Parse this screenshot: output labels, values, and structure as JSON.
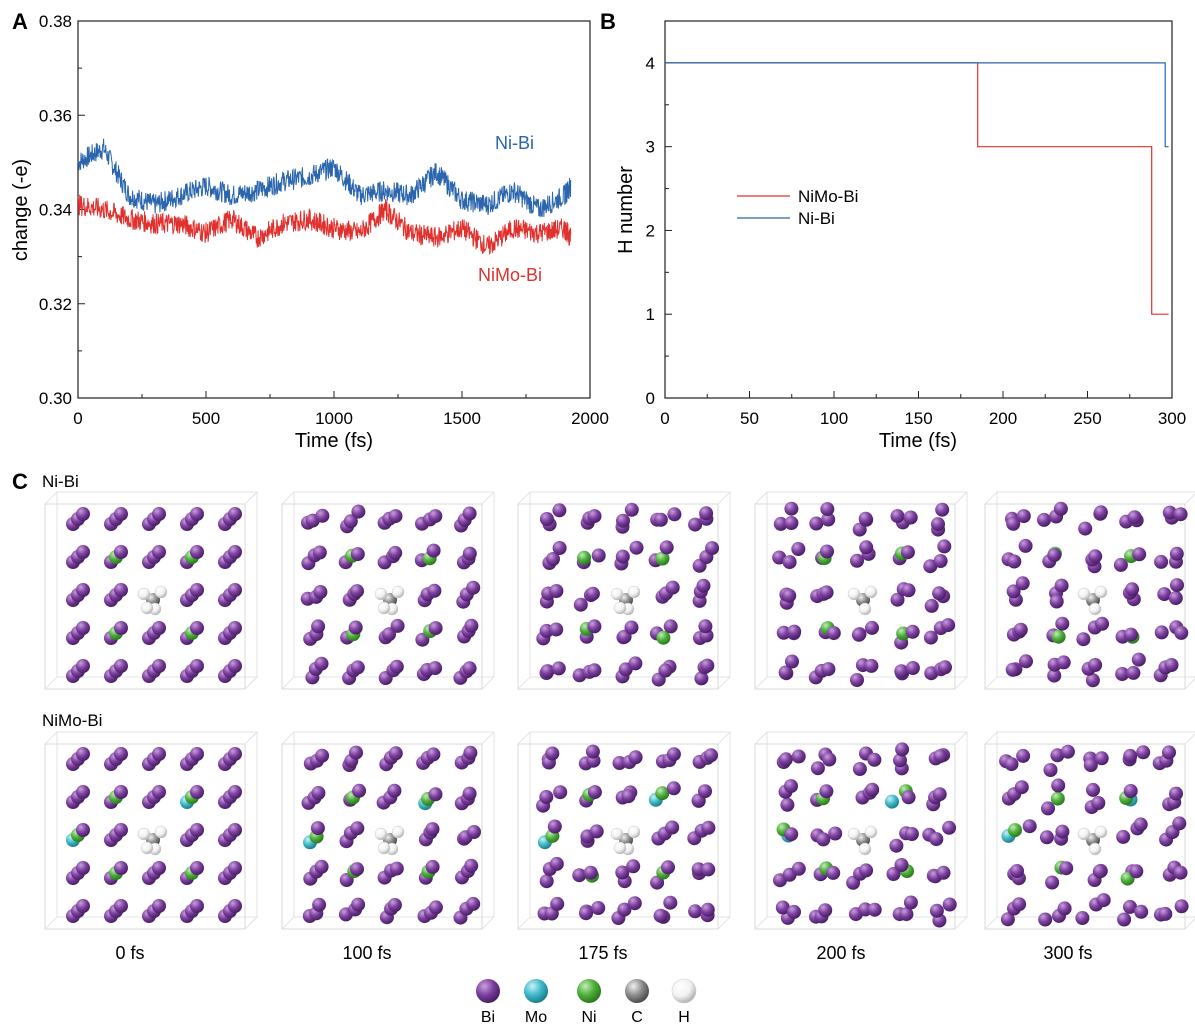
{
  "panels": {
    "a_letter": "A",
    "b_letter": "B",
    "c_letter": "C"
  },
  "chart_data": [
    {
      "type": "line",
      "panel": "A",
      "xlabel": "Time (fs)",
      "ylabel": "change (-e)",
      "xlim": [
        0,
        2000
      ],
      "ylim": [
        0.3,
        0.38
      ],
      "xticks": [
        "0",
        "500",
        "1000",
        "1500",
        "2000"
      ],
      "yticks": [
        "0.30",
        "0.32",
        "0.34",
        "0.36",
        "0.38"
      ],
      "grid": false,
      "series": [
        {
          "name": "Ni-Bi",
          "color": "#2a65ad",
          "x": [
            0,
            100,
            200,
            300,
            400,
            500,
            600,
            700,
            800,
            900,
            1000,
            1100,
            1200,
            1300,
            1400,
            1500,
            1600,
            1700,
            1800,
            1900,
            1925
          ],
          "y": [
            0.35,
            0.353,
            0.343,
            0.341,
            0.343,
            0.345,
            0.343,
            0.344,
            0.346,
            0.347,
            0.349,
            0.343,
            0.344,
            0.343,
            0.348,
            0.342,
            0.341,
            0.344,
            0.34,
            0.343,
            0.345
          ]
        },
        {
          "name": "NiMo-Bi",
          "color": "#e0312e",
          "x": [
            0,
            100,
            200,
            300,
            400,
            500,
            600,
            700,
            800,
            900,
            1000,
            1100,
            1200,
            1300,
            1400,
            1500,
            1600,
            1700,
            1800,
            1900,
            1925
          ],
          "y": [
            0.341,
            0.34,
            0.338,
            0.337,
            0.337,
            0.335,
            0.338,
            0.334,
            0.337,
            0.338,
            0.336,
            0.335,
            0.34,
            0.335,
            0.334,
            0.336,
            0.332,
            0.336,
            0.335,
            0.336,
            0.334
          ]
        }
      ]
    },
    {
      "type": "line",
      "panel": "B",
      "xlabel": "Time (fs)",
      "ylabel": "H number",
      "xlim": [
        0,
        300
      ],
      "ylim": [
        0,
        4.5
      ],
      "xticks": [
        "0",
        "50",
        "100",
        "150",
        "200",
        "250",
        "300"
      ],
      "yticks": [
        "0",
        "1",
        "2",
        "3",
        "4"
      ],
      "legend": "center-left",
      "grid": false,
      "series": [
        {
          "name": "NiMo-Bi",
          "color": "#e0312e",
          "step_x": [
            0,
            185,
            185,
            288,
            288,
            298
          ],
          "step_y": [
            4,
            4,
            3,
            3,
            1,
            1
          ]
        },
        {
          "name": "Ni-Bi",
          "color": "#2a65ad",
          "step_x": [
            0,
            296,
            296,
            298
          ],
          "step_y": [
            4,
            4,
            3,
            3
          ]
        }
      ]
    }
  ],
  "panel_c": {
    "row_labels": [
      "Ni-Bi",
      "NiMo-Bi"
    ],
    "time_labels": [
      "0 fs",
      "100 fs",
      "175 fs",
      "200 fs",
      "300 fs"
    ],
    "legend": [
      {
        "label": "Bi",
        "color": "#7b3f9e"
      },
      {
        "label": "Mo",
        "color": "#3fb8c8"
      },
      {
        "label": "Ni",
        "color": "#4cae3a"
      },
      {
        "label": "C",
        "color": "#8c8c8c"
      },
      {
        "label": "H",
        "color": "#f2f2f2"
      }
    ]
  }
}
